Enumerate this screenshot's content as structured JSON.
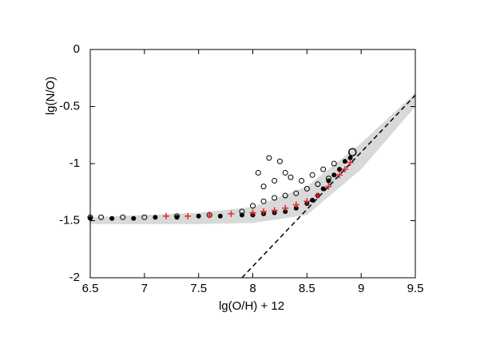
{
  "chart_data": {
    "type": "scatter",
    "xlabel": "lg(O/H) + 12",
    "ylabel": "lg(N/O)",
    "xlim": [
      6.5,
      9.5
    ],
    "ylim": [
      -2,
      0
    ],
    "xticks": [
      6.5,
      7,
      7.5,
      8,
      8.5,
      9,
      9.5
    ],
    "yticks": [
      0,
      -0.5,
      -1,
      -1.5,
      -2
    ],
    "band": {
      "color": "#d9d9d9",
      "x": [
        6.5,
        7.5,
        8.0,
        8.5,
        9.0,
        9.5
      ],
      "upper": [
        -1.47,
        -1.43,
        -1.38,
        -1.2,
        -0.82,
        -0.38
      ],
      "lower": [
        -1.53,
        -1.53,
        -1.52,
        -1.45,
        -1.05,
        -0.5
      ]
    },
    "reference_line": {
      "color": "#000000",
      "dashed": true,
      "x": [
        7.9,
        9.5
      ],
      "values": [
        -2,
        -0.4
      ]
    },
    "series": [
      {
        "marker": "open-circle",
        "color": "#000000",
        "x": [
          6.5,
          6.6,
          6.8,
          7.0,
          7.3,
          7.6,
          7.9,
          8.0,
          8.1,
          8.2,
          8.3,
          8.4,
          8.5,
          8.6,
          8.7,
          8.1,
          8.2,
          8.3,
          8.15,
          8.25,
          8.35,
          8.05,
          8.45,
          8.55,
          8.65,
          8.75
        ],
        "values": [
          -1.47,
          -1.47,
          -1.47,
          -1.47,
          -1.46,
          -1.45,
          -1.42,
          -1.37,
          -1.33,
          -1.3,
          -1.28,
          -1.26,
          -1.22,
          -1.18,
          -1.13,
          -1.2,
          -1.15,
          -1.08,
          -0.95,
          -0.98,
          -1.12,
          -1.08,
          -1.15,
          -1.1,
          -1.05,
          -1.0
        ]
      },
      {
        "marker": "filled-circle",
        "color": "#000000",
        "x": [
          6.5,
          6.7,
          6.9,
          7.1,
          7.3,
          7.5,
          7.7,
          7.9,
          8.0,
          8.1,
          8.2,
          8.3,
          8.4,
          8.5,
          8.55,
          8.6,
          8.65,
          8.7,
          8.75,
          8.8,
          8.85,
          8.9
        ],
        "values": [
          -1.48,
          -1.48,
          -1.48,
          -1.47,
          -1.47,
          -1.46,
          -1.46,
          -1.45,
          -1.45,
          -1.44,
          -1.43,
          -1.42,
          -1.39,
          -1.35,
          -1.32,
          -1.28,
          -1.22,
          -1.15,
          -1.1,
          -1.05,
          -0.98,
          -0.95
        ]
      },
      {
        "marker": "plus",
        "color": "#e8262b",
        "x": [
          7.2,
          7.4,
          7.6,
          7.8,
          8.0,
          8.1,
          8.2,
          8.3,
          8.4,
          8.5,
          8.6,
          8.7,
          8.8,
          8.85,
          8.9
        ],
        "values": [
          -1.46,
          -1.46,
          -1.45,
          -1.44,
          -1.43,
          -1.42,
          -1.41,
          -1.39,
          -1.36,
          -1.33,
          -1.28,
          -1.2,
          -1.1,
          -1.05,
          -0.99
        ]
      },
      {
        "marker": "large-open-circle",
        "color": "#000000",
        "x": [
          8.92
        ],
        "values": [
          -0.9
        ]
      }
    ]
  }
}
